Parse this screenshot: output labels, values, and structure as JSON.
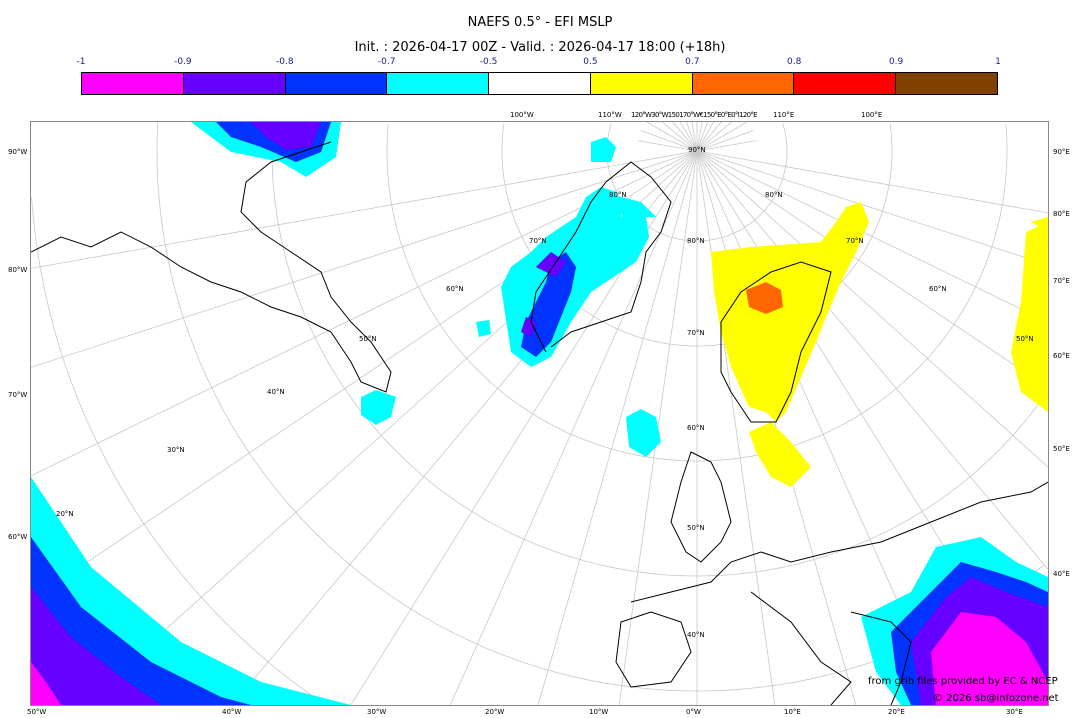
{
  "header": {
    "title": "NAEFS 0.5° - EFI MSLP",
    "subtitle": "Init. : 2026-04-17 00Z - Valid. : 2026-04-17 18:00 (+18h)"
  },
  "colorbar": {
    "ticks": [
      "-1",
      "-0.9",
      "-0.8",
      "-0.7",
      "-0.5",
      "0.5",
      "0.7",
      "0.8",
      "0.9",
      "1"
    ],
    "colors": [
      "#ff00ff",
      "#6600ff",
      "#0033ff",
      "#00ffff",
      "#ffffff",
      "#ffff00",
      "#ff6600",
      "#ff0000",
      "#804000"
    ]
  },
  "axes": {
    "left": [
      "90°W",
      "80°W",
      "70°W",
      "60°W"
    ],
    "right": [
      "90°E",
      "80°E",
      "70°E",
      "60°E",
      "50°E",
      "40°E"
    ],
    "bottom": [
      "50°W",
      "40°W",
      "30°W",
      "20°W",
      "10°W",
      "0°W",
      "10°E",
      "20°E",
      "30°E"
    ],
    "top": [
      "100°W",
      "110°W",
      "120°W30°W150170°W€150°E0°E0°I120°E",
      "110°E",
      "100°E"
    ],
    "lat_labels": [
      "90°N",
      "80°N",
      "80°N",
      "80°N",
      "70°N",
      "70°N",
      "70°N",
      "60°N",
      "60°N",
      "60°N",
      "50°N",
      "50°N",
      "50°N",
      "40°N",
      "40°N",
      "30°N",
      "20°N"
    ]
  },
  "credits": {
    "source": "from grib files provided by EC & NCEP",
    "copyright": "© 2026 sb@infozone.net"
  }
}
